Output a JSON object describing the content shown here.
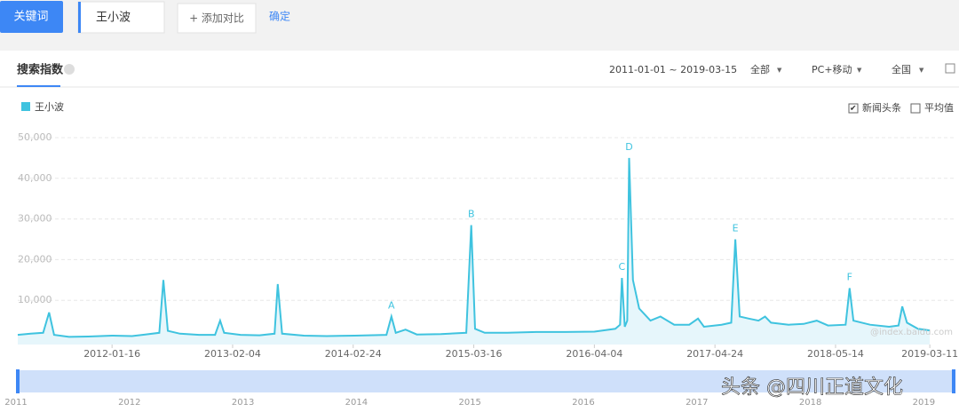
{
  "toolbar": {
    "button": "关键词",
    "keyword": "王小波",
    "add": "+ 添加对比",
    "confirm": "确定"
  },
  "panel": {
    "tab": "搜索指数",
    "range": "2011-01-01 ~ 2019-03-15",
    "scope": "全部",
    "device": "PC+移动",
    "region": "全国",
    "options": [
      {
        "label": "新闻头条",
        "checked": true
      },
      {
        "label": "平均值",
        "checked": false
      }
    ]
  },
  "chart_data": {
    "type": "line",
    "series": [
      {
        "name": "王小波",
        "color": "#3fc3df",
        "x": [
          "2011-03-21",
          "2011-05-01",
          "2011-06-10",
          "2011-06-29",
          "2011-07-15",
          "2011-09-01",
          "2011-11-01",
          "2012-01-16",
          "2012-03-20",
          "2012-05-01",
          "2012-06-15",
          "2012-06-28",
          "2012-07-12",
          "2012-08-20",
          "2012-10-20",
          "2012-12-10",
          "2012-12-26",
          "2013-01-08",
          "2013-03-01",
          "2013-05-01",
          "2013-06-18",
          "2013-06-28",
          "2013-07-12",
          "2013-09-20",
          "2013-12-01",
          "2014-03-01",
          "2014-06-10",
          "2014-06-26",
          "2014-07-10",
          "2014-08-10",
          "2014-09-15",
          "2014-12-01",
          "2015-02-20",
          "2015-03-08",
          "2015-03-20",
          "2015-04-20",
          "2015-07-01",
          "2015-10-01",
          "2016-01-01",
          "2016-04-04",
          "2016-06-10",
          "2016-06-25",
          "2016-07-01",
          "2016-07-10",
          "2016-07-18",
          "2016-07-24",
          "2016-08-05",
          "2016-08-25",
          "2016-09-30",
          "2016-11-01",
          "2016-12-15",
          "2017-02-01",
          "2017-03-01",
          "2017-03-20",
          "2017-05-15",
          "2017-06-15",
          "2017-06-28",
          "2017-07-12",
          "2017-08-10",
          "2017-09-10",
          "2017-10-01",
          "2017-10-20",
          "2017-12-15",
          "2018-02-01",
          "2018-03-15",
          "2018-04-20",
          "2018-06-15",
          "2018-06-28",
          "2018-07-10",
          "2018-09-01",
          "2018-11-01",
          "2018-12-01",
          "2018-12-13",
          "2018-12-28",
          "2019-02-01",
          "2019-03-11"
        ],
        "values": [
          1500,
          1800,
          2000,
          7000,
          1500,
          1000,
          1100,
          1300,
          1200,
          1600,
          2000,
          15000,
          2500,
          1800,
          1500,
          1500,
          5000,
          2000,
          1500,
          1400,
          1800,
          14000,
          1800,
          1300,
          1200,
          1300,
          1500,
          6000,
          2000,
          2800,
          1600,
          1700,
          2000,
          28500,
          3000,
          2000,
          2000,
          2200,
          2200,
          2300,
          3000,
          4000,
          15500,
          3500,
          5000,
          45000,
          15000,
          8000,
          5000,
          6000,
          4000,
          4000,
          5500,
          3500,
          4000,
          4500,
          25000,
          6000,
          5500,
          5000,
          6000,
          4500,
          4000,
          4200,
          5000,
          3800,
          4000,
          13000,
          5000,
          4000,
          3500,
          3800,
          8500,
          4500,
          3000,
          2600
        ]
      }
    ],
    "xlim": [
      "2011-03-21",
      "2019-05-29"
    ],
    "xticks": [
      "2012-01-16",
      "2013-02-04",
      "2014-02-24",
      "2015-03-16",
      "2016-04-04",
      "2017-04-24",
      "2018-05-14",
      "2019-03-11"
    ],
    "ylim": [
      0,
      50000
    ],
    "yticks": [
      {
        "value": 10000,
        "label": "10,000"
      },
      {
        "value": 20000,
        "label": "20,000"
      },
      {
        "value": 30000,
        "label": "30,000"
      },
      {
        "value": 40000,
        "label": "40,000"
      },
      {
        "value": 50000,
        "label": "50,000"
      }
    ],
    "grid": true,
    "annotations": [
      {
        "text": "A",
        "x": "2014-06-26",
        "y": 6000
      },
      {
        "text": "B",
        "x": "2015-03-08",
        "y": 28500
      },
      {
        "text": "C",
        "x": "2016-07-01",
        "y": 15500
      },
      {
        "text": "D",
        "x": "2016-07-24",
        "y": 45000
      },
      {
        "text": "E",
        "x": "2017-06-28",
        "y": 25000
      },
      {
        "text": "F",
        "x": "2018-06-28",
        "y": 13000
      }
    ],
    "watermark": "@index.baidu.com"
  },
  "navigator": {
    "years": [
      "2011",
      "2012",
      "2013",
      "2014",
      "2015",
      "2016",
      "2017",
      "2018",
      "2019"
    ]
  },
  "watermark": "头条 @四川正道文化"
}
